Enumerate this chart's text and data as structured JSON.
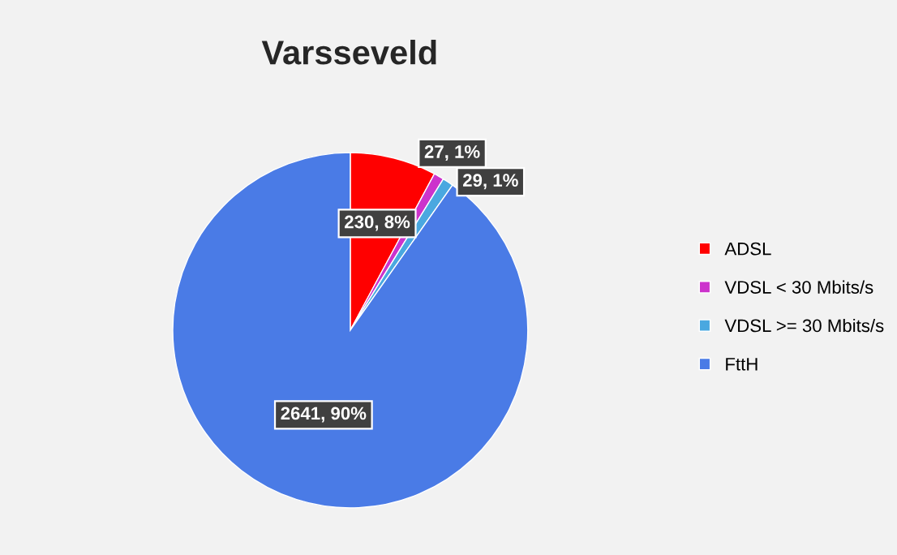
{
  "chart_data": {
    "type": "pie",
    "title": "Varsseveld",
    "categories": [
      "ADSL",
      "VDSL < 30 Mbits/s",
      "VDSL >= 30 Mbits/s",
      "FttH"
    ],
    "values": [
      230,
      27,
      29,
      2641
    ],
    "colors": [
      "#ff0000",
      "#cc33cc",
      "#4aa8e0",
      "#4a7be6"
    ],
    "value_labels": [
      "230, 8%",
      "27, 1%",
      "29, 1%",
      "2641, 90%"
    ],
    "legend": "right"
  }
}
